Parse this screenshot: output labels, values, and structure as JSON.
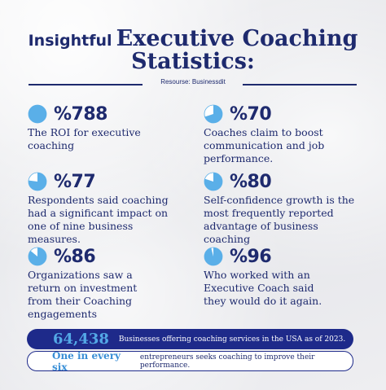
{
  "title": {
    "prefix": "Insightful",
    "line1": "Executive Coaching",
    "line2": "Statistics:"
  },
  "source": "Resourse: Businessdit",
  "colors": {
    "navy": "#1e2a6e",
    "pie_fill": "#5aafe8",
    "pie_empty": "#ffffff",
    "bar_bg": "#1e2a8a",
    "highlight": "#53a8e6"
  },
  "stats": [
    {
      "value": "%788",
      "description": "The ROI for executive coaching",
      "pie_fraction": 1.0,
      "icon": "pie-chart-icon"
    },
    {
      "value": "%70",
      "description": "Coaches claim to boost communication and job performance.",
      "pie_fraction": 0.7,
      "icon": "pie-chart-icon"
    },
    {
      "value": "%77",
      "description": "Respondents said coaching had a significant impact on one of nine business measures.",
      "pie_fraction": 0.77,
      "icon": "pie-chart-icon"
    },
    {
      "value": "%80",
      "description": "Self-confidence growth is the most frequently reported advantage of business coaching",
      "pie_fraction": 0.8,
      "icon": "pie-chart-icon"
    },
    {
      "value": "%86",
      "description": "Organizations saw a return on investment from their Coaching engagements",
      "pie_fraction": 0.86,
      "icon": "pie-chart-icon"
    },
    {
      "value": "%96",
      "description": "Who worked with an Executive Coach said they would do it again.",
      "pie_fraction": 0.96,
      "icon": "pie-chart-icon"
    }
  ],
  "footer": {
    "bar1": {
      "highlight": "64,438",
      "text": "Businesses offering coaching services in the USA as of 2023."
    },
    "bar2": {
      "highlight": "One in every six",
      "text": "entrepreneurs seeks coaching to improve their performance."
    }
  }
}
